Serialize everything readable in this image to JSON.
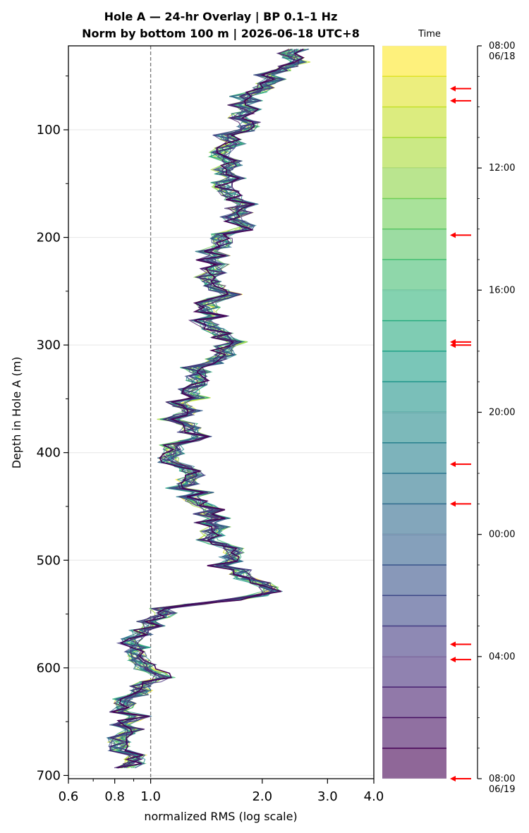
{
  "chart_data": {
    "type": "line",
    "title": "Hole A — 24-hr Overlay  |  BP 0.1–1 Hz",
    "subtitle": "Norm by bottom 100 m  |  2026-06-18 UTC+8",
    "xlabel": "normalized RMS  (log scale)",
    "ylabel": "Depth in Hole A (m)",
    "x_scale": "log",
    "xlim": [
      0.6,
      4.0
    ],
    "ylim": [
      703,
      22
    ],
    "x_ticks": [
      "0.6",
      "0.8",
      "1.0",
      "2.0",
      "3.0",
      "4.0"
    ],
    "y_ticks": [
      "100",
      "200",
      "300",
      "400",
      "500",
      "600",
      "700"
    ],
    "reference_line": {
      "x": 1.0,
      "style": "dashed"
    },
    "grid": "horizontal",
    "n_series": 24,
    "colormap": "viridis",
    "base_profile": {
      "depth": [
        25,
        40,
        55,
        70,
        85,
        100,
        115,
        130,
        145,
        160,
        175,
        190,
        205,
        220,
        235,
        250,
        265,
        280,
        295,
        310,
        325,
        340,
        355,
        370,
        385,
        400,
        415,
        430,
        445,
        460,
        475,
        490,
        505,
        520,
        530,
        545,
        560,
        575,
        590,
        605,
        620,
        635,
        650,
        665,
        680,
        695
      ],
      "rms": [
        2.45,
        2.3,
        2.0,
        1.78,
        1.85,
        1.7,
        1.62,
        1.55,
        1.62,
        1.68,
        1.7,
        1.72,
        1.48,
        1.52,
        1.44,
        1.55,
        1.5,
        1.46,
        1.65,
        1.5,
        1.35,
        1.32,
        1.22,
        1.2,
        1.3,
        1.05,
        1.25,
        1.22,
        1.38,
        1.45,
        1.48,
        1.62,
        1.5,
        2.05,
        2.1,
        1.03,
        1.02,
        0.88,
        0.95,
        1.05,
        0.9,
        0.85,
        0.9,
        0.87,
        0.88,
        0.87
      ]
    },
    "colorbar": {
      "label": "Time",
      "bands": 24,
      "tick_labels": [
        "08:00\n06/18",
        "12:00",
        "16:00",
        "20:00",
        "00:00",
        "04:00",
        "08:00\n06/19"
      ],
      "event_arrows_hours": [
        1.4,
        1.8,
        6.2,
        9.7,
        9.8,
        13.7,
        15.0,
        19.6,
        20.1,
        24.0
      ]
    }
  }
}
